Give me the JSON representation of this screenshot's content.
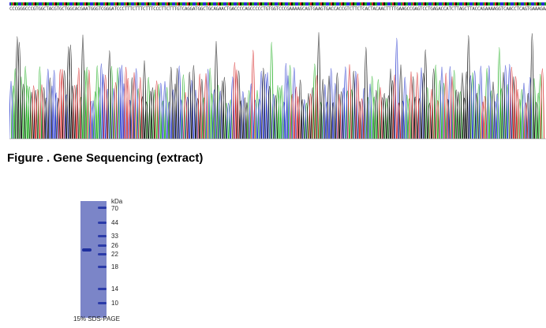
{
  "sequence_header": {
    "bases": "CCCGGGCCCGTGGCTACGTGCTGGCACGAATGGGTCGGGATCCCTTTCTTTCTTTCCCTTCTTTGTCAGGATGGCTGCAGAACTGACCCCAGCCCCCTGTGGTCCCGAAAAGCAGTGAAGTGACCACCGTCTTCTCACTACAACTTTTGAAGCCGAGTCCTGAGACCATCTTAGCTTACCAGAAAAGGTCAACCTCAGTGAAAGAACTGCCATCC"
  },
  "figure": {
    "caption": "Figure . Gene Sequencing (extract)"
  },
  "gel": {
    "unit_label": "kDa",
    "markers": [
      "70",
      "44",
      "33",
      "26",
      "22",
      "18",
      "14",
      "10"
    ],
    "caption": "15% SDS-PAGE"
  },
  "colors": {
    "trace_A": "#1fae1f",
    "trace_C": "#2233cc",
    "trace_G": "#111111",
    "trace_T": "#d41f1f",
    "gel_background": "#7b85c8",
    "band": "#1e2f9e"
  }
}
